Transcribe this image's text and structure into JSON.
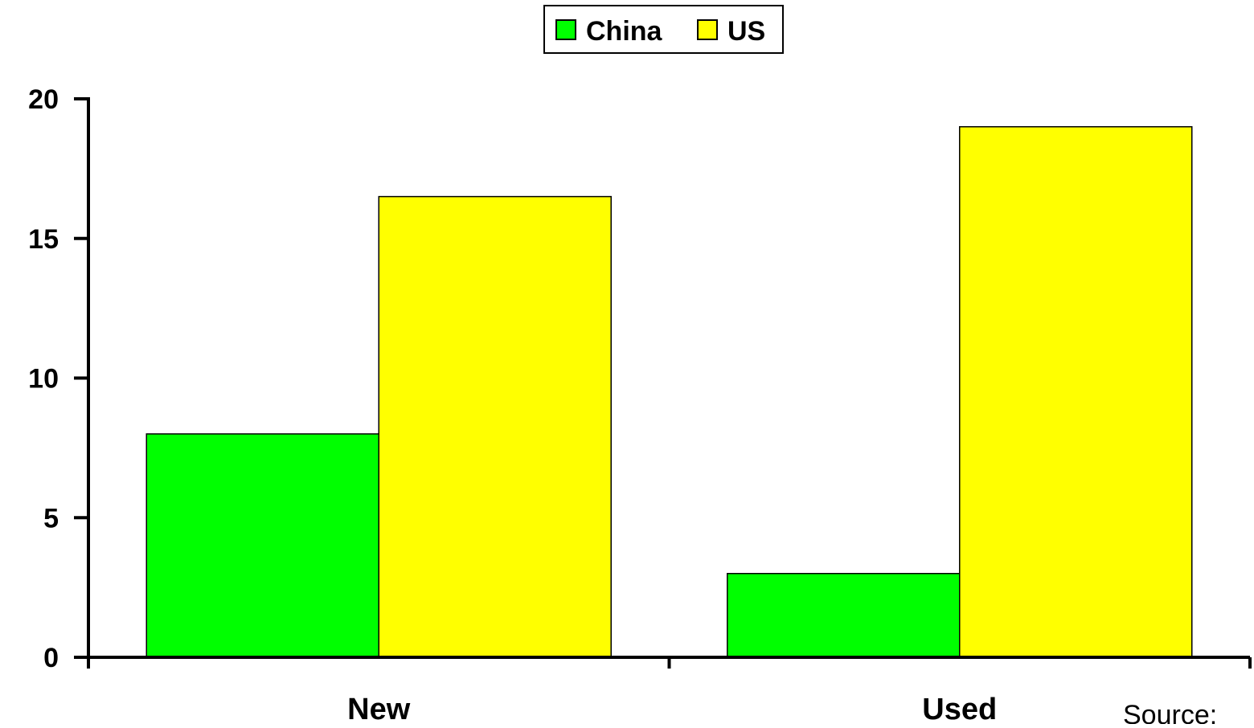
{
  "chart_data": {
    "type": "bar",
    "categories": [
      "New",
      "Used"
    ],
    "series": [
      {
        "name": "China",
        "values": [
          8,
          3
        ]
      },
      {
        "name": "US",
        "values": [
          16.5,
          19
        ]
      }
    ],
    "ylim": [
      0,
      20
    ],
    "yticks": [
      0,
      5,
      10,
      15,
      20
    ],
    "grid": false,
    "legend": {
      "placement": "top-center"
    }
  },
  "colors": {
    "China": "#00ff00",
    "US": "#ffff00",
    "axis": "#000000"
  },
  "footer": {
    "source_text": "Source:"
  }
}
